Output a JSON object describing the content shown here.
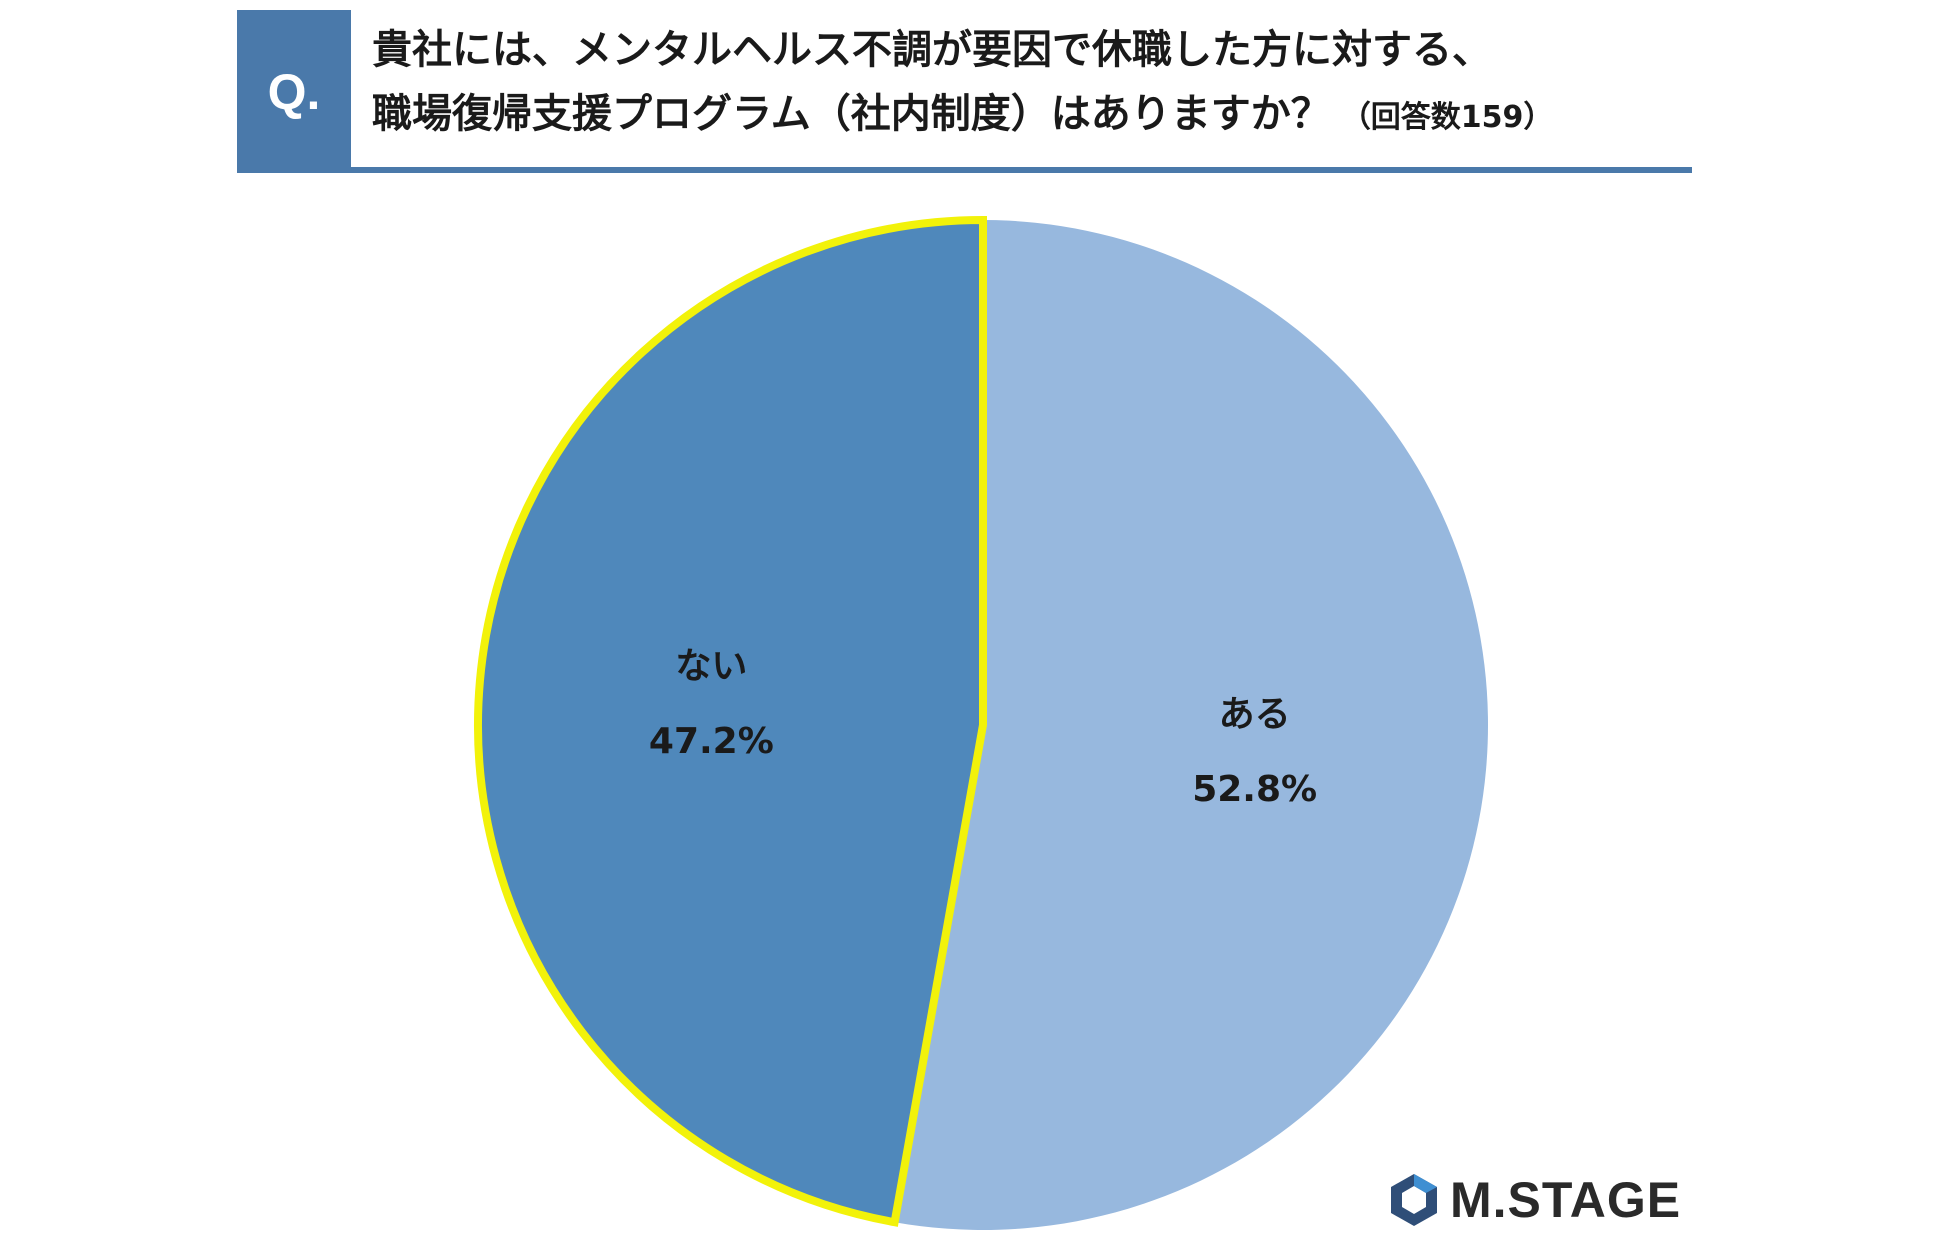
{
  "header": {
    "q_label": "Q.",
    "question_line1": "貴社には、メンタルヘルス不調が要因で休職した方に対する、",
    "question_line2": "職場復帰支援プログラム（社内制度）はありますか？",
    "respondents_note": "（回答数159）"
  },
  "chart_data": {
    "type": "pie",
    "slices": [
      {
        "label": "ある",
        "value": 52.8,
        "display": "52.8%",
        "color": "#97b8de"
      },
      {
        "label": "ない",
        "value": 47.2,
        "display": "47.2%",
        "color": "#4f88bb",
        "highlight_color": "#f2f20a"
      }
    ],
    "start_angle_deg": 0,
    "direction": "clockwise"
  },
  "logo": {
    "text": "M.STAGE",
    "colors": {
      "mark_main": "#2f4e78",
      "mark_accent": "#3f8fd2"
    }
  }
}
